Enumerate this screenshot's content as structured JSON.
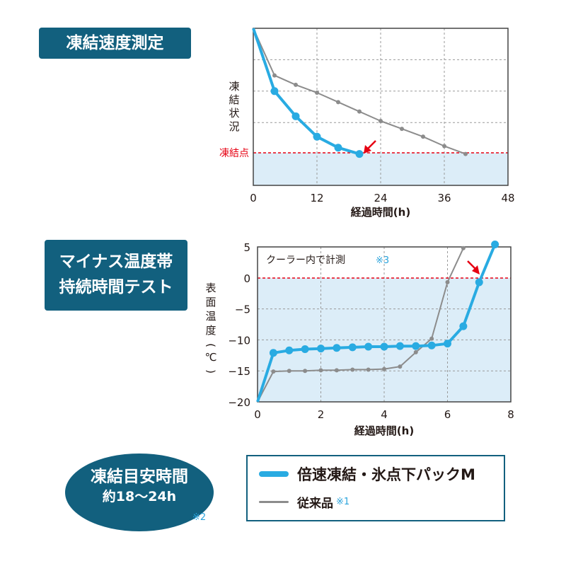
{
  "titles": {
    "freeze_speed": "凍結速度測定",
    "sub_zero_line1": "マイナス温度帯",
    "sub_zero_line2": "持続時間テスト",
    "freeze_time_title": "凍結目安時間",
    "freeze_time_value": "約18〜24h",
    "freeze_time_note": "※2"
  },
  "legend": {
    "series1": "倍速凍結・氷点下パックM",
    "series2": "従来品",
    "series2_note": "※1"
  },
  "colors": {
    "primary_series": "#29abe2",
    "secondary_series": "#8c8c8c",
    "freeze_line": "#e60012",
    "shade": "#dcedf8",
    "navy": "#12607e"
  },
  "chart_data": [
    {
      "type": "line",
      "xlabel": "経過時間(h)",
      "ylabel": "凍結状況",
      "xticks": [
        "0",
        "12",
        "24",
        "36",
        "48"
      ],
      "xlim": [
        0,
        48
      ],
      "ylim": [
        0,
        1
      ],
      "y_ticks_shown": false,
      "grid": true,
      "reference_line": {
        "label": "凍結点",
        "y": 0.2
      },
      "series": [
        {
          "name": "倍速凍結・氷点下パックM",
          "x": [
            0,
            4,
            8,
            12,
            16,
            20
          ],
          "y": [
            1.0,
            0.6,
            0.44,
            0.31,
            0.24,
            0.2
          ]
        },
        {
          "name": "従来品",
          "x": [
            0,
            4,
            8,
            12,
            16,
            20,
            24,
            28,
            32,
            36,
            40
          ],
          "y": [
            1.0,
            0.7,
            0.64,
            0.59,
            0.53,
            0.47,
            0.41,
            0.36,
            0.31,
            0.25,
            0.2
          ]
        }
      ],
      "annotations": []
    },
    {
      "type": "line",
      "xlabel": "経過時間(h)",
      "ylabel": "表面温度(℃)",
      "xticks": [
        "0",
        "2",
        "4",
        "6",
        "8"
      ],
      "yticks": [
        "5",
        "0",
        "−5",
        "−10",
        "−15",
        "−20"
      ],
      "xlim": [
        0,
        8
      ],
      "ylim": [
        -20,
        5
      ],
      "grid": true,
      "reference_line": {
        "y": 0
      },
      "series": [
        {
          "name": "倍速凍結・氷点下パックM",
          "x": [
            0,
            0.5,
            1,
            1.5,
            2,
            2.5,
            3,
            3.5,
            4,
            4.5,
            5,
            5.5,
            6,
            6.5,
            7,
            7.5
          ],
          "y": [
            -20,
            -12.1,
            -11.7,
            -11.5,
            -11.4,
            -11.3,
            -11.2,
            -11.1,
            -11.1,
            -11.0,
            -11.0,
            -10.9,
            -10.6,
            -7.8,
            -0.7,
            5.4
          ]
        },
        {
          "name": "従来品",
          "x": [
            0,
            0.5,
            1,
            1.5,
            2,
            2.5,
            3,
            3.5,
            4,
            4.5,
            5,
            5.5,
            6,
            6.5
          ],
          "y": [
            -20,
            -15.1,
            -15.0,
            -15.0,
            -14.9,
            -14.9,
            -14.8,
            -14.8,
            -14.7,
            -14.3,
            -12.0,
            -9.8,
            -0.7,
            4.8
          ]
        }
      ],
      "annotations": [
        "クーラー内で計測",
        "※3"
      ]
    }
  ]
}
